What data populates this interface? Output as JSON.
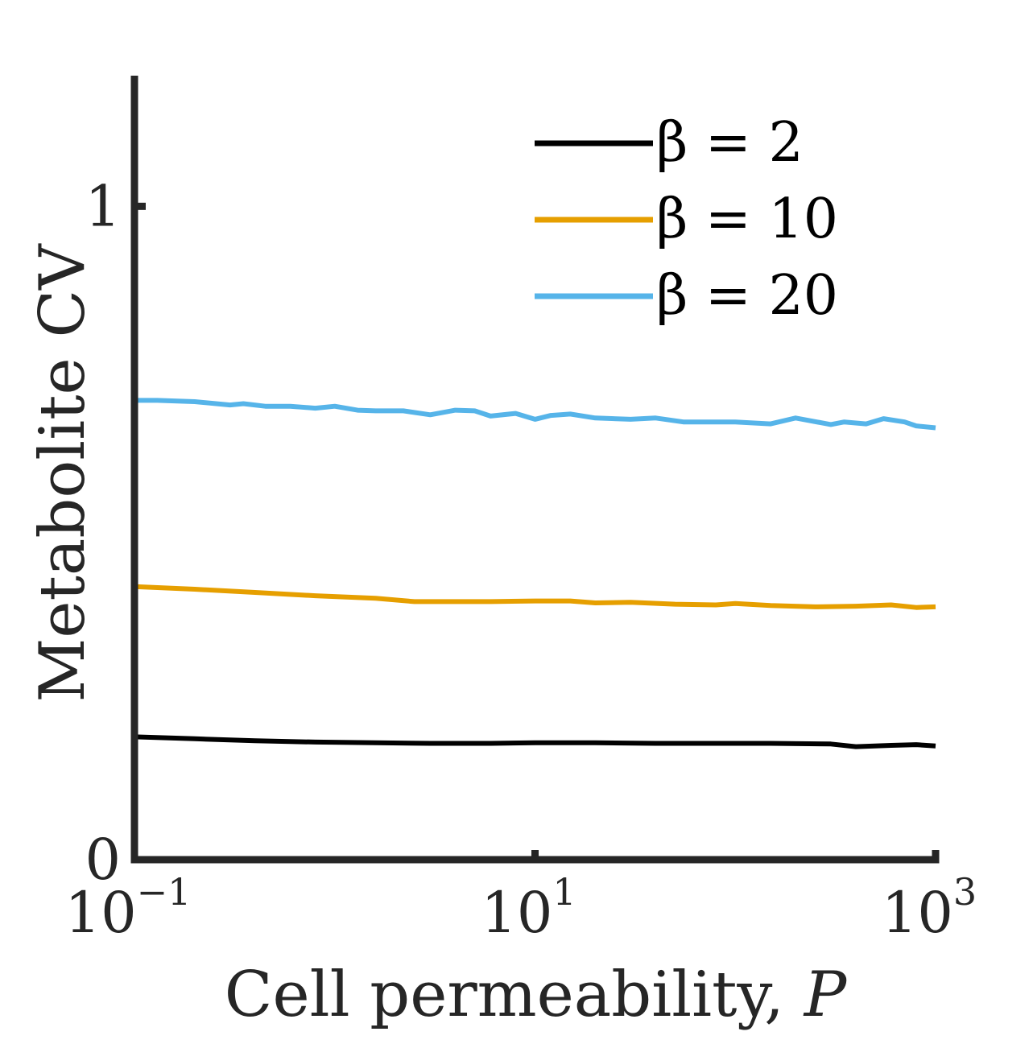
{
  "chart_data": {
    "type": "line",
    "title": "",
    "xlabel": "Cell permeability, ",
    "xlabel_var": "P",
    "ylabel": "Metabolite CV",
    "xscale": "log",
    "xlim": [
      0.1,
      1000
    ],
    "ylim": [
      0,
      1.2
    ],
    "grid": false,
    "legend_position": "top-right",
    "x_ticks": [
      {
        "value": 0.1,
        "base": "10",
        "exp": "−1"
      },
      {
        "value": 10,
        "base": "10",
        "exp": "1"
      },
      {
        "value": 1000,
        "base": "10",
        "exp": "3"
      }
    ],
    "y_ticks": [
      {
        "value": 0,
        "label": "0"
      },
      {
        "value": 1,
        "label": "1"
      }
    ],
    "series": [
      {
        "name": "β = 2",
        "legend_label": "β = 2",
        "color": "#000000",
        "x": [
          0.1,
          0.2,
          0.4,
          0.8,
          1.6,
          3,
          6,
          10,
          20,
          40,
          80,
          150,
          300,
          400,
          600,
          800,
          1000
        ],
        "y": [
          0.188,
          0.185,
          0.182,
          0.18,
          0.179,
          0.178,
          0.178,
          0.179,
          0.179,
          0.178,
          0.178,
          0.178,
          0.177,
          0.173,
          0.175,
          0.176,
          0.174
        ]
      },
      {
        "name": "β = 10",
        "legend_label": "β = 10",
        "color": "#E69F00",
        "x": [
          0.1,
          0.2,
          0.4,
          0.8,
          1.6,
          2.5,
          4,
          6,
          10,
          15,
          20,
          30,
          50,
          80,
          100,
          150,
          250,
          400,
          600,
          800,
          1000
        ],
        "y": [
          0.418,
          0.414,
          0.409,
          0.404,
          0.4,
          0.395,
          0.395,
          0.395,
          0.396,
          0.396,
          0.393,
          0.394,
          0.391,
          0.39,
          0.392,
          0.389,
          0.387,
          0.388,
          0.39,
          0.386,
          0.387
        ]
      },
      {
        "name": "β = 20",
        "legend_label": "β = 20",
        "color": "#56B4E9",
        "x": [
          0.1,
          0.13,
          0.2,
          0.3,
          0.35,
          0.45,
          0.6,
          0.8,
          1,
          1.3,
          1.6,
          2.2,
          3,
          4,
          5,
          6,
          8,
          10,
          12,
          15,
          20,
          30,
          40,
          55,
          70,
          100,
          150,
          200,
          300,
          350,
          450,
          550,
          700,
          800,
          1000
        ],
        "y": [
          0.703,
          0.703,
          0.701,
          0.696,
          0.698,
          0.694,
          0.694,
          0.691,
          0.694,
          0.688,
          0.687,
          0.687,
          0.681,
          0.688,
          0.687,
          0.679,
          0.683,
          0.674,
          0.68,
          0.682,
          0.676,
          0.674,
          0.676,
          0.67,
          0.67,
          0.67,
          0.667,
          0.676,
          0.666,
          0.67,
          0.667,
          0.675,
          0.67,
          0.664,
          0.661
        ]
      }
    ]
  }
}
